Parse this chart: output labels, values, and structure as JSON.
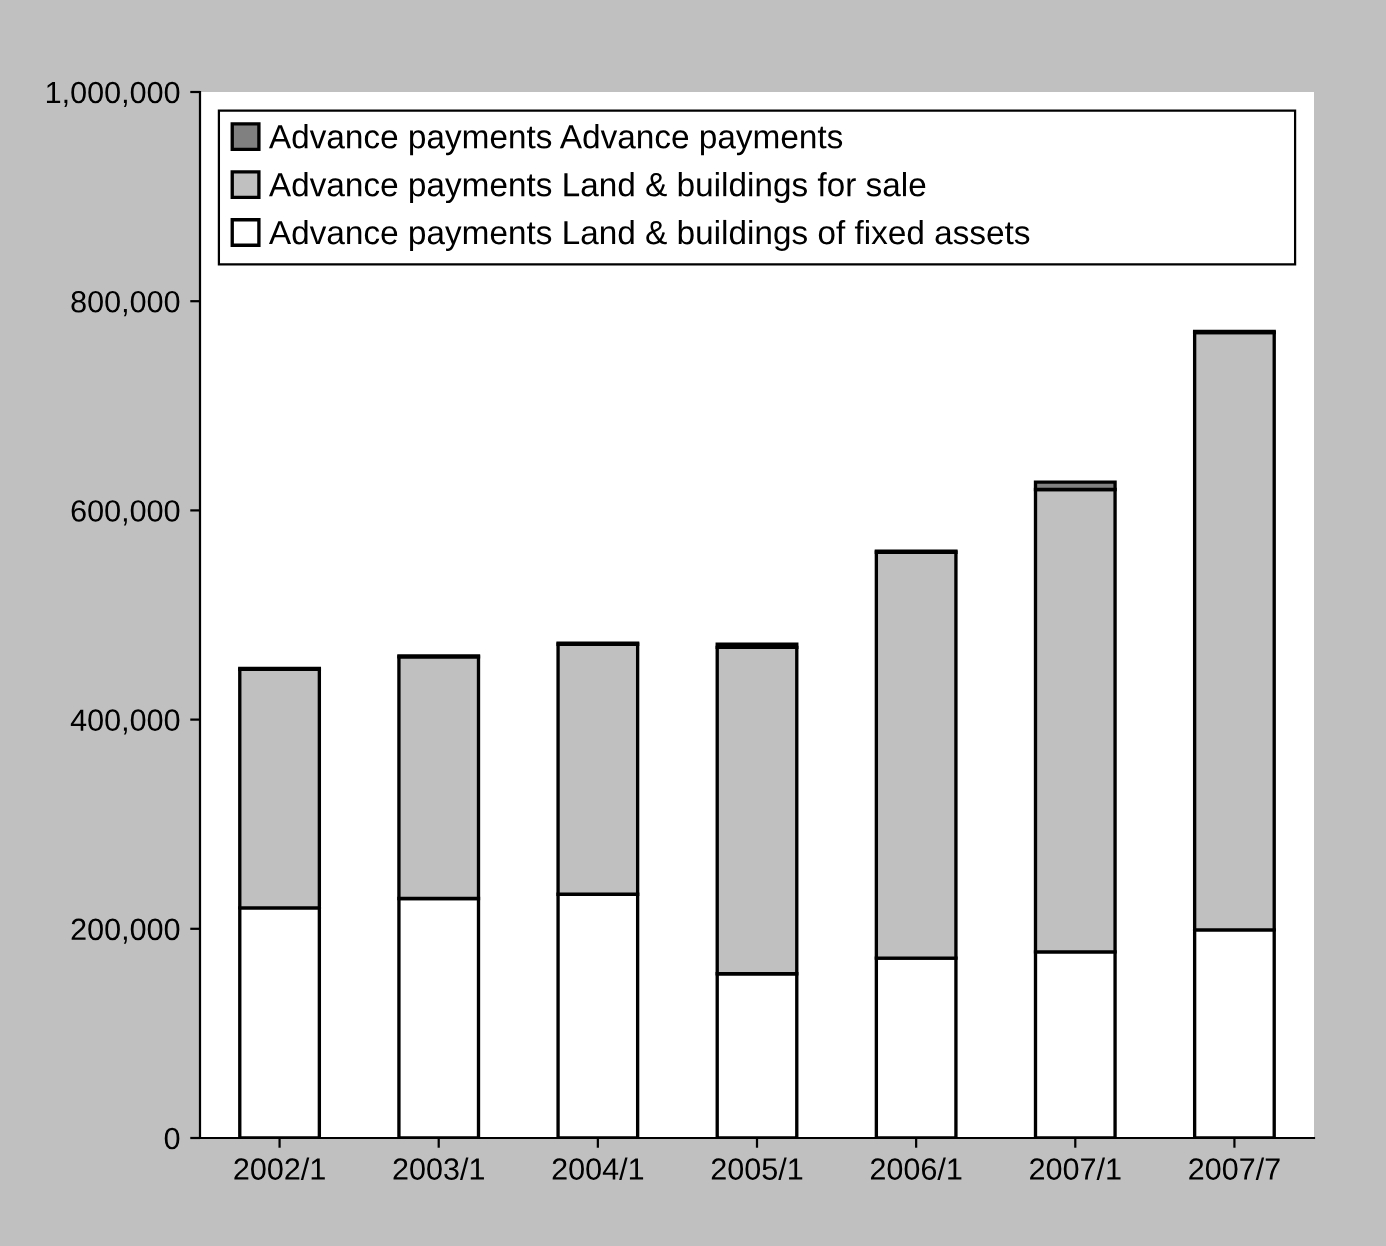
{
  "chart_data": {
    "type": "bar",
    "stacked": true,
    "categories": [
      "2002/1",
      "2003/1",
      "2004/1",
      "2005/1",
      "2006/1",
      "2007/1",
      "2007/7"
    ],
    "series": [
      {
        "name": "Advance payments Land & buildings of fixed assets",
        "color": "#ffffff",
        "values": [
          220000,
          229000,
          233000,
          157000,
          172000,
          178000,
          199000
        ]
      },
      {
        "name": "Advance payments Land & buildings for sale",
        "color": "#c0c0c0",
        "values": [
          228000,
          231000,
          239000,
          312000,
          388000,
          442000,
          571000
        ]
      },
      {
        "name": "Advance payments Advance payments",
        "color": "#808080",
        "values": [
          1000,
          1000,
          1000,
          3000,
          1000,
          7000,
          1000
        ]
      }
    ],
    "ylim": [
      0,
      1000000
    ],
    "yticks": [
      {
        "value": 0,
        "label": "0"
      },
      {
        "value": 200000,
        "label": "200,000"
      },
      {
        "value": 400000,
        "label": "400,000"
      },
      {
        "value": 600000,
        "label": "600,000"
      },
      {
        "value": 800000,
        "label": "800,000"
      },
      {
        "value": 1000000,
        "label": "1,000,000"
      }
    ],
    "grid": false,
    "legend": "top"
  }
}
